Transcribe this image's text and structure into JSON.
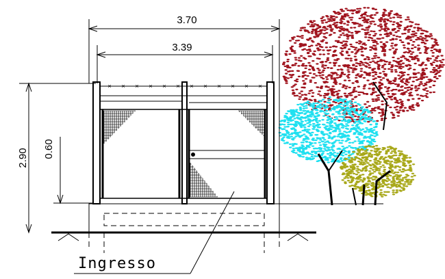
{
  "dimensions": [
    {
      "label": "3.70"
    },
    {
      "label": "3.39"
    },
    {
      "label": "2.90"
    },
    {
      "label": "0.60"
    }
  ],
  "callout": {
    "label": "Ingresso"
  }
}
